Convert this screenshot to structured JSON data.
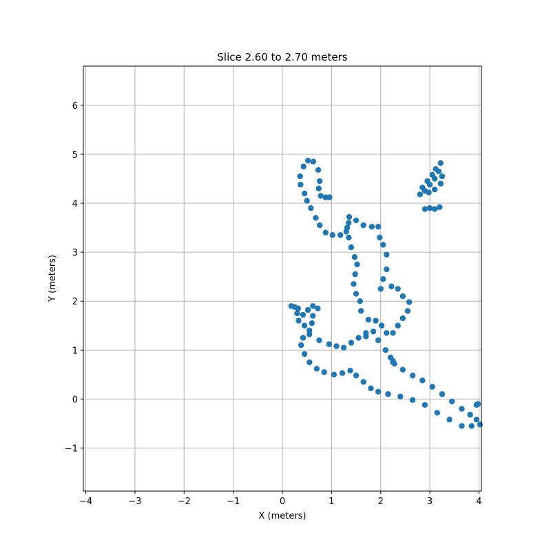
{
  "chart_data": {
    "type": "scatter",
    "title": "Slice 2.60 to 2.70 meters",
    "xlabel": "X (meters)",
    "ylabel": "Y (meters)",
    "xlim": [
      -4.05,
      4.05
    ],
    "ylim": [
      -1.88,
      6.8
    ],
    "xticks": [
      -4,
      -3,
      -2,
      -1,
      0,
      1,
      2,
      3,
      4
    ],
    "yticks": [
      -1,
      0,
      1,
      2,
      3,
      4,
      5,
      6
    ],
    "xtick_labels": [
      "−4",
      "−3",
      "−2",
      "−1",
      "0",
      "1",
      "2",
      "3",
      "4"
    ],
    "ytick_labels": [
      "−1",
      "0",
      "1",
      "2",
      "3",
      "4",
      "5",
      "6"
    ],
    "grid": true,
    "marker_color": "#1f77b4",
    "series": [
      {
        "points": [
          [
            0.96,
            4.12
          ],
          [
            0.88,
            4.12
          ],
          [
            0.78,
            4.15
          ],
          [
            0.74,
            4.3
          ],
          [
            0.76,
            4.45
          ],
          [
            0.73,
            4.68
          ],
          [
            0.63,
            4.85
          ],
          [
            0.52,
            4.87
          ],
          [
            0.43,
            4.75
          ],
          [
            0.36,
            4.55
          ],
          [
            0.37,
            4.38
          ],
          [
            0.45,
            4.2
          ],
          [
            0.5,
            4.05
          ],
          [
            0.58,
            3.9
          ],
          [
            0.68,
            3.7
          ],
          [
            0.76,
            3.55
          ],
          [
            0.88,
            3.4
          ],
          [
            1.02,
            3.35
          ],
          [
            1.18,
            3.35
          ],
          [
            1.3,
            3.42
          ],
          [
            1.35,
            3.6
          ],
          [
            1.36,
            3.72
          ],
          [
            1.5,
            3.65
          ],
          [
            1.65,
            3.55
          ],
          [
            1.82,
            3.52
          ],
          [
            1.95,
            3.52
          ],
          [
            1.98,
            3.3
          ],
          [
            2.05,
            3.15
          ],
          [
            2.12,
            2.95
          ],
          [
            2.12,
            2.65
          ],
          [
            2.05,
            2.45
          ],
          [
            2.0,
            2.25
          ],
          [
            2.22,
            2.3
          ],
          [
            2.35,
            2.25
          ],
          [
            2.45,
            2.1
          ],
          [
            2.58,
            1.98
          ],
          [
            2.55,
            1.8
          ],
          [
            2.45,
            1.65
          ],
          [
            2.35,
            1.5
          ],
          [
            2.25,
            1.35
          ],
          [
            2.12,
            1.35
          ],
          [
            2.02,
            1.5
          ],
          [
            1.9,
            1.6
          ],
          [
            1.75,
            1.62
          ],
          [
            1.6,
            1.8
          ],
          [
            1.58,
            2.0
          ],
          [
            1.5,
            2.15
          ],
          [
            1.45,
            2.35
          ],
          [
            1.48,
            2.55
          ],
          [
            1.52,
            2.75
          ],
          [
            1.47,
            2.9
          ],
          [
            1.4,
            3.1
          ],
          [
            1.35,
            3.3
          ],
          [
            1.32,
            3.5
          ]
        ]
      },
      {
        "points": [
          [
            1.7,
            1.35
          ],
          [
            1.85,
            1.38
          ],
          [
            1.95,
            1.2
          ],
          [
            2.1,
            1.0
          ],
          [
            2.25,
            0.75
          ],
          [
            2.45,
            0.6
          ],
          [
            2.65,
            0.48
          ],
          [
            2.85,
            0.38
          ],
          [
            3.05,
            0.25
          ],
          [
            3.25,
            0.1
          ],
          [
            3.45,
            -0.05
          ],
          [
            3.65,
            -0.2
          ],
          [
            3.82,
            -0.32
          ],
          [
            3.95,
            -0.42
          ],
          [
            4.02,
            -0.52
          ],
          [
            3.85,
            -0.55
          ],
          [
            3.65,
            -0.55
          ],
          [
            3.4,
            -0.42
          ],
          [
            3.15,
            -0.28
          ],
          [
            2.9,
            -0.12
          ],
          [
            2.65,
            -0.02
          ],
          [
            2.4,
            0.05
          ],
          [
            2.15,
            0.1
          ],
          [
            1.95,
            0.15
          ],
          [
            1.8,
            0.22
          ],
          [
            1.65,
            0.35
          ],
          [
            1.5,
            0.48
          ],
          [
            1.38,
            0.58
          ],
          [
            1.22,
            0.53
          ],
          [
            1.05,
            0.5
          ],
          [
            0.85,
            0.55
          ],
          [
            0.7,
            0.62
          ],
          [
            0.55,
            0.75
          ],
          [
            0.45,
            0.92
          ],
          [
            0.38,
            1.1
          ],
          [
            0.42,
            1.25
          ],
          [
            0.55,
            1.32
          ],
          [
            0.75,
            1.2
          ],
          [
            0.95,
            1.12
          ],
          [
            1.1,
            1.08
          ],
          [
            1.25,
            1.05
          ],
          [
            1.4,
            1.15
          ],
          [
            1.55,
            1.25
          ],
          [
            1.7,
            1.28
          ]
        ]
      },
      {
        "points": [
          [
            0.18,
            1.9
          ],
          [
            0.32,
            1.85
          ],
          [
            0.42,
            1.72
          ],
          [
            0.52,
            1.82
          ],
          [
            0.62,
            1.9
          ],
          [
            0.72,
            1.85
          ],
          [
            0.62,
            1.7
          ],
          [
            0.6,
            1.55
          ],
          [
            0.55,
            1.4
          ],
          [
            0.45,
            1.5
          ],
          [
            0.33,
            1.6
          ],
          [
            0.3,
            1.75
          ],
          [
            0.25,
            1.88
          ]
        ]
      },
      {
        "points": [
          [
            3.22,
            4.82
          ],
          [
            3.18,
            4.65
          ],
          [
            3.1,
            4.5
          ],
          [
            3.0,
            4.38
          ],
          [
            2.9,
            4.25
          ],
          [
            2.8,
            4.18
          ],
          [
            2.85,
            4.32
          ],
          [
            2.95,
            4.45
          ],
          [
            3.05,
            4.58
          ],
          [
            3.12,
            4.7
          ],
          [
            3.25,
            4.55
          ],
          [
            3.22,
            4.4
          ],
          [
            3.1,
            4.28
          ],
          [
            2.98,
            4.22
          ]
        ]
      },
      {
        "points": [
          [
            2.9,
            3.88
          ],
          [
            3.0,
            3.9
          ],
          [
            3.1,
            3.88
          ],
          [
            3.2,
            3.92
          ],
          [
            3.95,
            -0.12
          ],
          [
            3.98,
            -0.1
          ],
          [
            2.2,
            0.85
          ],
          [
            2.25,
            0.78
          ],
          [
            2.28,
            0.72
          ]
        ]
      }
    ]
  }
}
